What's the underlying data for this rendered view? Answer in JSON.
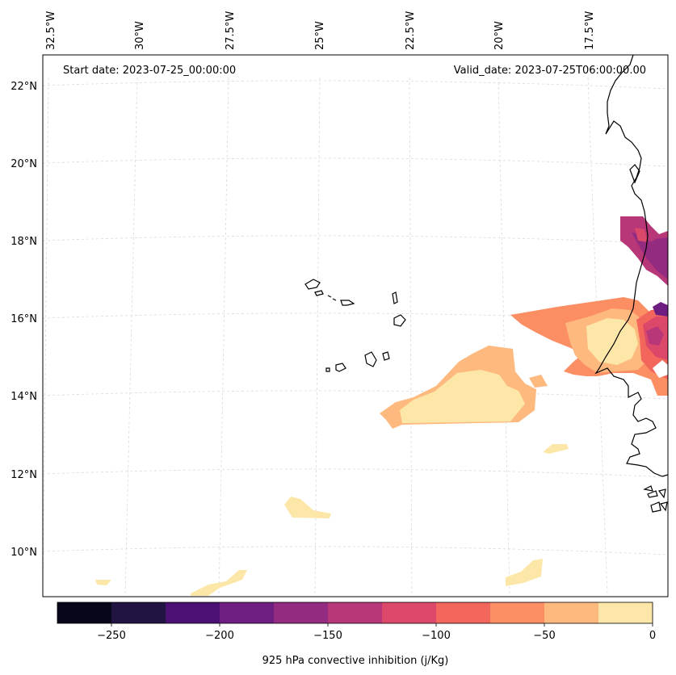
{
  "annotations": {
    "start": "Start date: 2023-07-25_00:00:00",
    "valid": "Valid_date: 2023-07-25T06:00:00.00"
  },
  "lon_labels": [
    "32.5°W",
    "30°W",
    "27.5°W",
    "25°W",
    "22.5°W",
    "20°W",
    "17.5°W"
  ],
  "lat_labels": [
    "22°N",
    "20°N",
    "18°N",
    "16°N",
    "14°N",
    "12°N",
    "10°N"
  ],
  "colorbar": {
    "label": "925 hPa convective inhibition (j/Kg)",
    "ticks": [
      "−250",
      "−200",
      "−150",
      "−100",
      "−50",
      "0"
    ],
    "levels": [
      -275,
      -250,
      -225,
      -200,
      -175,
      -150,
      -125,
      -100,
      -75,
      -50,
      -25,
      0
    ],
    "colors": [
      "#07061b",
      "#211342",
      "#4c0f73",
      "#6e1d81",
      "#932b80",
      "#b73779",
      "#dc4869",
      "#f2665c",
      "#fc8e64",
      "#feb97f",
      "#fde7a8"
    ]
  },
  "colors": {
    "coastline": "#000000",
    "gridline": "#d9d9d9",
    "frame": "#000000"
  }
}
